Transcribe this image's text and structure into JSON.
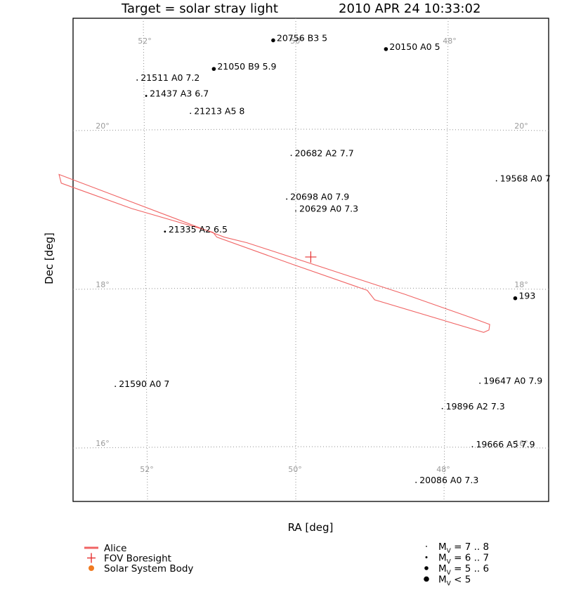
{
  "title": {
    "left": "Target = solar stray light",
    "right": "2010 APR 24 10:33:02"
  },
  "colors": {
    "track": "#f06464",
    "boresight": "#e53030",
    "solar_body": "#f07a20",
    "grid": "#909090",
    "frame": "#000000"
  },
  "chart_data": {
    "type": "scatter",
    "xlabel": "RA [deg]",
    "ylabel": "Dec [deg]",
    "x_ticks": [
      {
        "label": "52°",
        "value": 52
      },
      {
        "label": "50°",
        "value": 50
      },
      {
        "label": "48°",
        "value": 48
      }
    ],
    "y_ticks": [
      {
        "label": "20°",
        "value": 20
      },
      {
        "label": "18°",
        "value": 18
      },
      {
        "label": "16°",
        "value": 16
      }
    ],
    "stars": [
      {
        "label": "20756 B3 5",
        "ra": 50.3,
        "dec": 21.12,
        "mag": 5
      },
      {
        "label": "20150 A0 5",
        "ra": 48.8,
        "dec": 21.01,
        "mag": 5
      },
      {
        "label": "21050 B9 5.9",
        "ra": 51.09,
        "dec": 20.76,
        "mag": 5.9
      },
      {
        "label": "21511 A0 7.2",
        "ra": 52.11,
        "dec": 20.62,
        "mag": 7.2
      },
      {
        "label": "21437 A3 6.7",
        "ra": 51.99,
        "dec": 20.42,
        "mag": 6.7
      },
      {
        "label": "21213 A5 8",
        "ra": 51.4,
        "dec": 20.2,
        "mag": 8
      },
      {
        "label": "20682 A2 7.7",
        "ra": 50.06,
        "dec": 19.67,
        "mag": 7.7
      },
      {
        "label": "19568 A0 7",
        "ra": 47.33,
        "dec": 19.35,
        "mag": 7
      },
      {
        "label": "20698 A0 7.9",
        "ra": 50.12,
        "dec": 19.12,
        "mag": 7.9
      },
      {
        "label": "20629 A0 7.3",
        "ra": 50.0,
        "dec": 18.97,
        "mag": 7.3
      },
      {
        "label": "21335 A2 6.5",
        "ra": 51.74,
        "dec": 18.71,
        "mag": 6.5
      },
      {
        "label": "193",
        "ra": 47.08,
        "dec": 17.87,
        "mag": 5
      },
      {
        "label": "21590 A0 7",
        "ra": 52.4,
        "dec": 16.76,
        "mag": 7
      },
      {
        "label": "19647 A0 7.9",
        "ra": 47.55,
        "dec": 16.8,
        "mag": 7.9
      },
      {
        "label": "19896 A2 7.3",
        "ra": 48.05,
        "dec": 16.48,
        "mag": 7.3
      },
      {
        "label": "19666 A5 7.9",
        "ra": 47.65,
        "dec": 16.0,
        "mag": 7.9
      },
      {
        "label": "20086 A0 7.3",
        "ra": 48.4,
        "dec": 15.55,
        "mag": 7.3
      }
    ],
    "track_outline": [
      [
        53.15,
        19.43
      ],
      [
        53.12,
        19.32
      ],
      [
        52.18,
        19.0
      ],
      [
        51.2,
        18.73
      ],
      [
        50.95,
        18.64
      ],
      [
        50.65,
        18.57
      ],
      [
        49.55,
        18.23
      ],
      [
        48.55,
        17.92
      ],
      [
        47.65,
        17.62
      ],
      [
        47.42,
        17.54
      ],
      [
        47.43,
        17.47
      ],
      [
        47.5,
        17.44
      ],
      [
        48.95,
        17.85
      ],
      [
        49.05,
        17.97
      ],
      [
        50.05,
        18.3
      ],
      [
        51.05,
        18.64
      ],
      [
        51.1,
        18.7
      ],
      [
        51.2,
        18.73
      ],
      [
        51.2,
        18.73
      ]
    ],
    "boresight": {
      "ra": 49.8,
      "dec": 18.39
    },
    "legend": {
      "items": [
        {
          "label": "Alice",
          "kind": "line"
        },
        {
          "label": "FOV Boresight",
          "kind": "cross"
        },
        {
          "label": "Solar System Body",
          "kind": "dot"
        }
      ],
      "magnitudes": [
        {
          "prefix": "M",
          "sub": "V",
          "suffix": " = 7 .. 8"
        },
        {
          "prefix": "M",
          "sub": "V",
          "suffix": " = 6 .. 7"
        },
        {
          "prefix": "M",
          "sub": "V",
          "suffix": " = 5 .. 6"
        },
        {
          "prefix": "M",
          "sub": "V",
          "suffix": " < 5"
        }
      ]
    }
  }
}
